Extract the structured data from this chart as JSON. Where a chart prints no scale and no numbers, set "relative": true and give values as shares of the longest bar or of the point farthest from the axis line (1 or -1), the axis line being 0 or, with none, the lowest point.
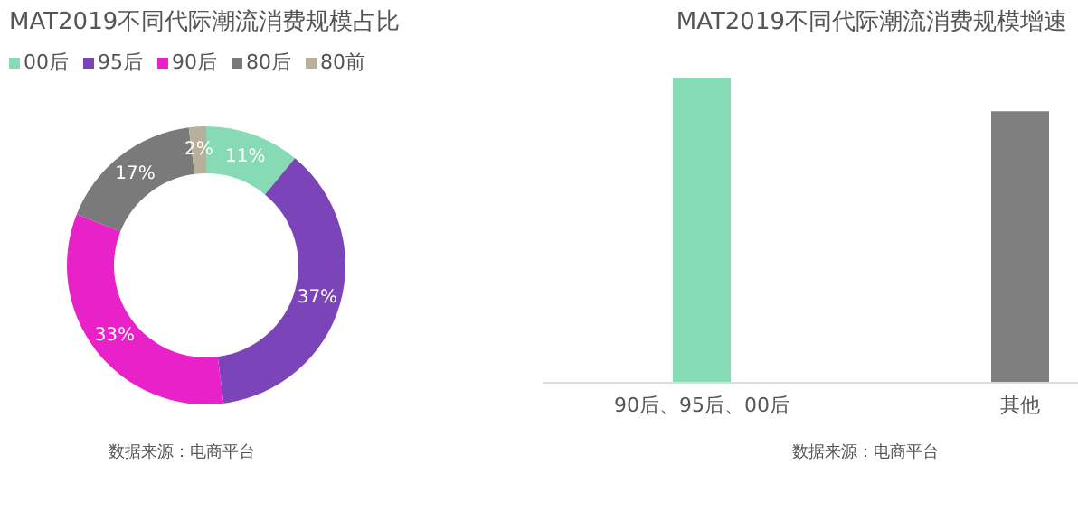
{
  "chart_data": [
    {
      "type": "donut",
      "title": "MAT2019不同代际潮流消费规模占比",
      "categories": [
        "00后",
        "95后",
        "90后",
        "80后",
        "80前"
      ],
      "values": [
        11,
        37,
        33,
        17,
        2
      ],
      "colors": [
        "#86dbb5",
        "#7b45b9",
        "#e921c9",
        "#7a7a7a",
        "#b8b09a"
      ],
      "value_labels": [
        "11%",
        "37%",
        "33%",
        "17%",
        "2%"
      ],
      "legend": "top left",
      "annotations": [
        "数据来源：电商平台"
      ]
    },
    {
      "type": "bar",
      "title": "MAT2019不同代际潮流消费规模增速",
      "categories": [
        "90后、95后、00后",
        "其他"
      ],
      "values": [
        1,
        0.89
      ],
      "colors": [
        "#86dcb4",
        "#7f7f7f"
      ],
      "relative": true,
      "annotations": [
        "数据来源：电商平台"
      ]
    }
  ]
}
